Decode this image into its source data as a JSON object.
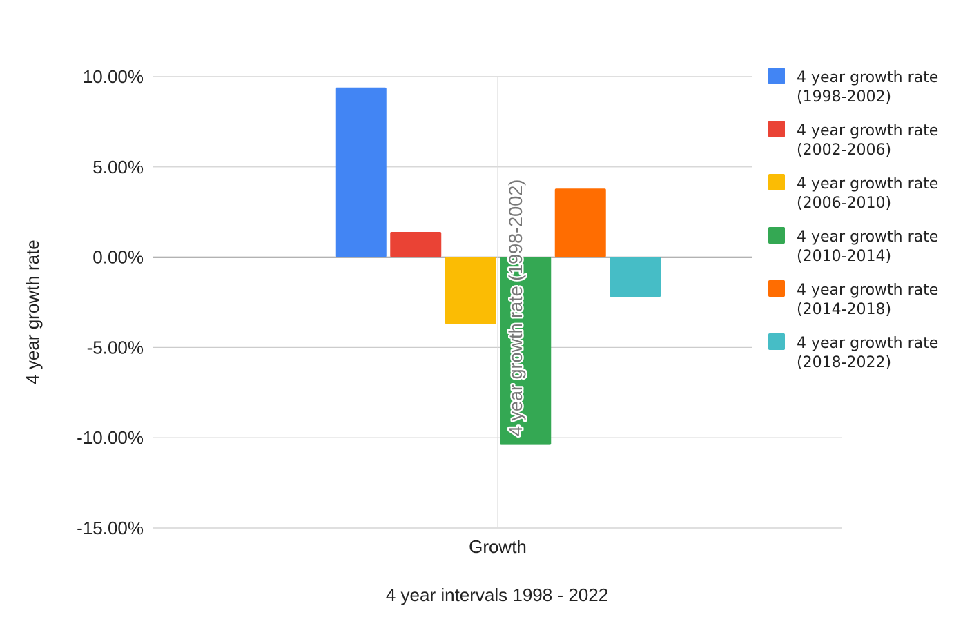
{
  "chart_data": {
    "type": "bar",
    "title": "",
    "xlabel": "4 year intervals 1998 - 2022",
    "ylabel": "4 year growth rate",
    "categories": [
      "Growth"
    ],
    "series": [
      {
        "name": "4 year growth rate (1998-2002)",
        "name_lines": [
          "4 year growth rate",
          "(1998-2002)"
        ],
        "values": [
          9.4
        ],
        "color": "#4285f4"
      },
      {
        "name": "4 year growth rate (2002-2006)",
        "name_lines": [
          "4 year growth rate",
          "(2002-2006)"
        ],
        "values": [
          1.4
        ],
        "color": "#ea4335"
      },
      {
        "name": "4 year growth rate (2006-2010)",
        "name_lines": [
          "4 year growth rate",
          "(2006-2010)"
        ],
        "values": [
          -3.7
        ],
        "color": "#fbbc04"
      },
      {
        "name": "4 year growth rate (2010-2014)",
        "name_lines": [
          "4 year growth rate",
          "(2010-2014)"
        ],
        "values": [
          -10.4
        ],
        "color": "#34a853"
      },
      {
        "name": "4 year growth rate (2014-2018)",
        "name_lines": [
          "4 year growth rate",
          "(2014-2018)"
        ],
        "values": [
          3.8
        ],
        "color": "#ff6d01"
      },
      {
        "name": "4 year growth rate (2018-2022)",
        "name_lines": [
          "4 year growth rate",
          "(2018-2022)"
        ],
        "values": [
          -2.2
        ],
        "color": "#46bdc6"
      }
    ],
    "ylim": [
      -15,
      10
    ],
    "yticks": [
      10,
      5,
      0,
      -5,
      -10,
      -15
    ],
    "ytick_labels": [
      "10.00%",
      "5.00%",
      "0.00%",
      "-5.00%",
      "-10.00%",
      "-15.00%"
    ],
    "grid": true,
    "legend_position": "right",
    "overlay_label": "4 year growth rate (1998-2002)"
  }
}
